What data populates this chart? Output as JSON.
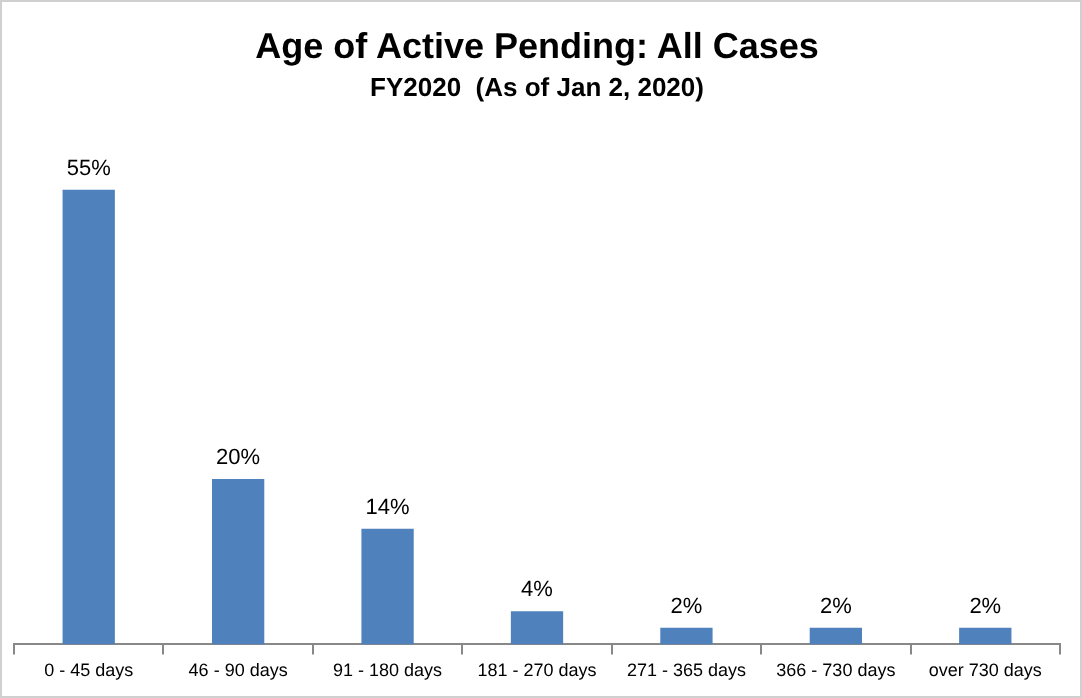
{
  "chart_data": {
    "type": "bar",
    "title": "Age of Active Pending: All Cases",
    "subtitle": "FY2020  (As of Jan 2, 2020)",
    "categories": [
      "0 - 45 days",
      "46 - 90 days",
      "91 - 180 days",
      "181 - 270 days",
      "271 - 365 days",
      "366 - 730 days",
      "over 730 days"
    ],
    "values": [
      55,
      20,
      14,
      4,
      2,
      2,
      2
    ],
    "value_labels": [
      "55%",
      "20%",
      "14%",
      "4%",
      "2%",
      "2%",
      "2%"
    ],
    "color": "#4f81bd"
  }
}
